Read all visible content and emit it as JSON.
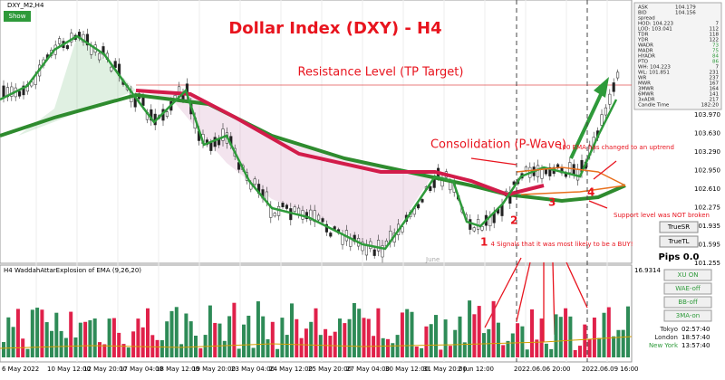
{
  "window": {
    "symbol": "DXY_M2,H4",
    "show_button": "Show",
    "title": "Dollar Index (DXY) - H4",
    "annotations": {
      "resistance": "Resistance Level (TP Target)",
      "consolidation": "Consolidation (P-Wave)",
      "ema": "100 EMA has changed to an uptrend",
      "support": "Support level was NOT broken",
      "signals": "4 Signals that it was most likely to be a BUY!",
      "month": "June",
      "points": [
        "1",
        "2",
        "3",
        "4"
      ]
    }
  },
  "price_axis": [
    "103.970",
    "103.630",
    "103.290",
    "102.950",
    "102.610",
    "102.275",
    "101.935",
    "101.595",
    "101.255"
  ],
  "info_panel": {
    "rows": [
      [
        "ASK",
        "104.179",
        ""
      ],
      [
        "BID",
        "104.156",
        ""
      ],
      [
        "spread",
        "",
        ""
      ],
      [
        "HOD: 104.223",
        "",
        "7"
      ],
      [
        "LOD: 103.041",
        "",
        "112"
      ],
      [
        "TDR",
        "",
        "118"
      ],
      [
        "YDR",
        "",
        "122"
      ],
      [
        "WADR",
        "",
        "73"
      ],
      [
        "MADR",
        "",
        "75"
      ],
      [
        "HYADR",
        "",
        "84"
      ],
      [
        "PTO",
        "",
        "86"
      ],
      [
        "WH: 104.223",
        "",
        "7"
      ],
      [
        "WL: 101.851",
        "",
        "231"
      ],
      [
        "WR",
        "",
        "237"
      ],
      [
        "MWR",
        "",
        "167"
      ],
      [
        "3MWR",
        "",
        "164"
      ],
      [
        "6MWR",
        "",
        "141"
      ],
      [
        "3xADR",
        "",
        "217"
      ],
      [
        "Candle Time",
        "",
        "182:20"
      ]
    ],
    "buttons": [
      "TrueSR",
      "TrueTL"
    ],
    "pips": "Pips 0.0"
  },
  "indicator": {
    "label": "H4 WaddahAttarExplosion of EMA (9,26,20)",
    "top_value": "16.9314",
    "buttons": [
      "XU ON",
      "WAE-off",
      "BB-off",
      "3MA-on"
    ],
    "sessions": [
      [
        "Tokyo",
        "02:57:40"
      ],
      [
        "London",
        "18:57:40"
      ],
      [
        "New York",
        "13:57:40"
      ]
    ]
  },
  "time_axis": [
    "6 May 2022",
    "10 May 12:00",
    "12 May 20:00",
    "17 May 04:00",
    "18 May 12:00",
    "19 May 20:00",
    "23 May 04:00",
    "24 May 12:00",
    "25 May 20:00",
    "27 May 04:00",
    "30 May 12:00",
    "31 May 20:00",
    "2 Jun 12:00",
    "2022.06.06 20:00",
    "2022.06.09 16:00"
  ]
}
